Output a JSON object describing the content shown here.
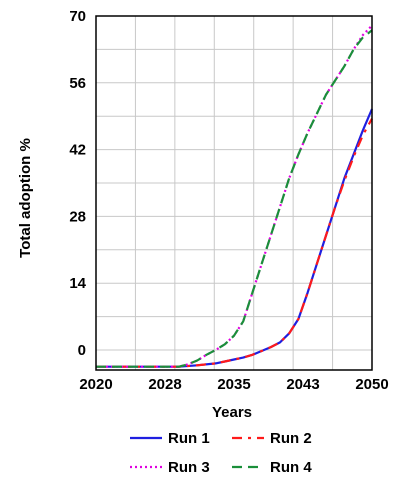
{
  "chart_data": {
    "type": "line",
    "title": "",
    "xlabel": "Years",
    "ylabel": "Total adoption %",
    "x_ticks": [
      "2020",
      "2028",
      "2035",
      "2043",
      "2050"
    ],
    "y_ticks": [
      "0",
      "14",
      "28",
      "42",
      "56",
      "70"
    ],
    "xlim": [
      2020,
      2050
    ],
    "ylim": [
      0,
      70
    ],
    "grid": true,
    "legend_placement": "bottom",
    "series": [
      {
        "name": "Run 1",
        "color": "#1f1fe0",
        "style": "solid",
        "x": [
          2020,
          2029,
          2031,
          2033,
          2034,
          2035,
          2036,
          2037,
          2038,
          2039,
          2040,
          2041,
          2042,
          2043,
          2044,
          2045,
          2046,
          2047,
          2048,
          2049,
          2050
        ],
        "y": [
          -3.5,
          -3.5,
          -3.2,
          -2.8,
          -2.4,
          -2.0,
          -1.6,
          -1.0,
          -0.2,
          0.6,
          1.6,
          3.5,
          6.5,
          12.0,
          18.0,
          24.0,
          30.0,
          36.0,
          41.0,
          46.0,
          50.5
        ]
      },
      {
        "name": "Run 2",
        "color": "#ff1a1a",
        "style": "dash-dot",
        "x": [
          2020,
          2029,
          2031,
          2033,
          2034,
          2035,
          2036,
          2037,
          2038,
          2039,
          2040,
          2041,
          2042,
          2043,
          2044,
          2045,
          2046,
          2047,
          2048,
          2049,
          2050
        ],
        "y": [
          -3.5,
          -3.5,
          -3.2,
          -2.8,
          -2.4,
          -2.0,
          -1.6,
          -1.0,
          -0.2,
          0.6,
          1.6,
          3.5,
          6.5,
          12.0,
          18.0,
          24.0,
          30.0,
          35.5,
          40.5,
          45.0,
          48.5
        ]
      },
      {
        "name": "Run 3",
        "color": "#e000e0",
        "style": "dotted",
        "x": [
          2020,
          2029,
          2030,
          2031,
          2032,
          2033,
          2034,
          2035,
          2036,
          2037,
          2038,
          2039,
          2040,
          2041,
          2042,
          2043,
          2044,
          2045,
          2046,
          2047,
          2048,
          2049,
          2050
        ],
        "y": [
          -3.5,
          -3.5,
          -3.0,
          -2.2,
          -1.0,
          0.0,
          1.2,
          3.0,
          6.0,
          12.0,
          18.0,
          24.0,
          30.0,
          36.0,
          41.0,
          45.5,
          49.5,
          53.5,
          56.5,
          59.5,
          63.0,
          66.0,
          68.0
        ]
      },
      {
        "name": "Run 4",
        "color": "#1a8f3a",
        "style": "dashed",
        "x": [
          2020,
          2029,
          2030,
          2031,
          2032,
          2033,
          2034,
          2035,
          2036,
          2037,
          2038,
          2039,
          2040,
          2041,
          2042,
          2043,
          2044,
          2045,
          2046,
          2047,
          2048,
          2049,
          2050
        ],
        "y": [
          -3.5,
          -3.5,
          -3.0,
          -2.2,
          -1.0,
          0.0,
          1.2,
          3.0,
          6.0,
          12.0,
          18.0,
          24.0,
          30.0,
          36.0,
          41.0,
          45.5,
          49.5,
          53.5,
          56.5,
          59.5,
          63.0,
          65.5,
          67.0
        ]
      }
    ]
  }
}
